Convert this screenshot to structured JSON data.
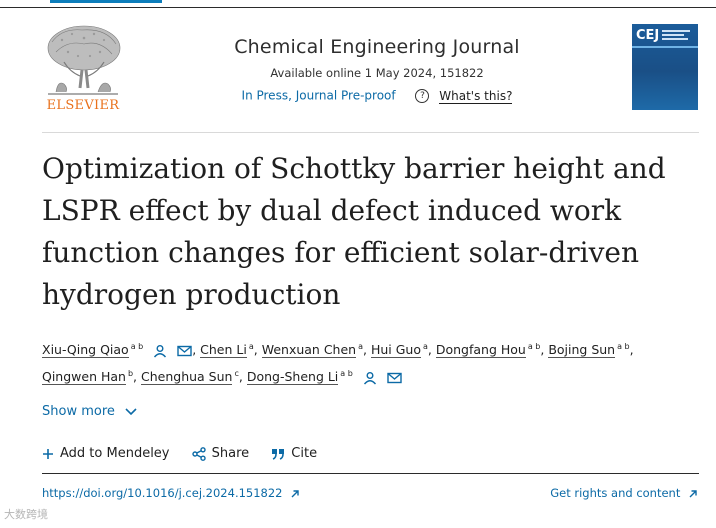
{
  "header": {
    "journal_title": "Chemical Engineering Journal",
    "available": "Available online 1 May 2024, 151822",
    "status": "In Press, Journal Pre-proof",
    "help_link": "What's this?"
  },
  "logo": {
    "wordmark": "ELSEVIER"
  },
  "cover": {
    "label": "CEJ"
  },
  "article": {
    "title": "Optimization of Schottky barrier height and LSPR effect by dual defect induced work function changes for efficient solar-driven hydrogen production",
    "authors": [
      {
        "name": "Xiu-Qing Qiao",
        "sup": "a b"
      },
      {
        "name": "Chen Li",
        "sup": "a"
      },
      {
        "name": "Wenxuan Chen",
        "sup": "a"
      },
      {
        "name": "Hui Guo",
        "sup": "a"
      },
      {
        "name": "Dongfang Hou",
        "sup": "a b"
      },
      {
        "name": "Bojing Sun",
        "sup": "a b"
      },
      {
        "name": "Qingwen Han",
        "sup": "b"
      },
      {
        "name": "Chenghua Sun",
        "sup": "c"
      },
      {
        "name": "Dong-Sheng Li",
        "sup": "a b"
      }
    ],
    "show_more": "Show more"
  },
  "actions": {
    "mendeley": "Add to Mendeley",
    "share": "Share",
    "cite": "Cite"
  },
  "footer": {
    "doi": "https://doi.org/10.1016/j.cej.2024.151822",
    "rights": "Get rights and content"
  },
  "watermark": "大数跨境",
  "colors": {
    "link": "#0c6aa6",
    "elsevier_orange": "#e9711c"
  }
}
